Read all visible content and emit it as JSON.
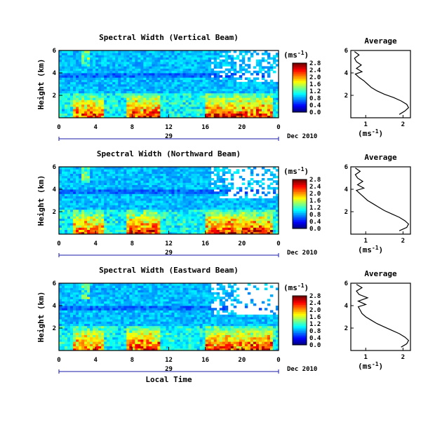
{
  "chart_data": [
    {
      "type": "heatmap",
      "title": "Spectral Width (Vertical Beam)",
      "ylabel": "Height (km)",
      "ylim": [
        0,
        6
      ],
      "yticks": [
        "2",
        "4",
        "6"
      ],
      "xlim": [
        0,
        24
      ],
      "xticks": [
        "0",
        "4",
        "8",
        "12",
        "16",
        "20",
        "0"
      ],
      "date_label": "29",
      "month_label": "Dec 2010",
      "colorbar": {
        "unit": "(ms⁻¹)",
        "ticks": [
          "0.0",
          "0.4",
          "0.8",
          "1.2",
          "1.6",
          "2.0",
          "2.4",
          "2.8"
        ],
        "range": [
          0,
          2.8
        ]
      },
      "average": {
        "title": "Average",
        "xlabel": "(ms⁻¹)",
        "xticks": [
          "1",
          "2"
        ],
        "yticks": [
          "2",
          "4",
          "6"
        ],
        "xlim": [
          0.6,
          2.2
        ],
        "ylim": [
          0,
          6
        ],
        "profile": [
          [
            0.3,
            1.9
          ],
          [
            0.6,
            2.05
          ],
          [
            0.9,
            2.15
          ],
          [
            1.2,
            2.1
          ],
          [
            1.5,
            1.95
          ],
          [
            1.8,
            1.75
          ],
          [
            2.1,
            1.5
          ],
          [
            2.4,
            1.3
          ],
          [
            2.7,
            1.15
          ],
          [
            3.0,
            1.05
          ],
          [
            3.3,
            0.95
          ],
          [
            3.6,
            0.82
          ],
          [
            3.9,
            0.72
          ],
          [
            4.1,
            0.9
          ],
          [
            4.4,
            0.75
          ],
          [
            4.7,
            0.88
          ],
          [
            5.0,
            0.75
          ],
          [
            5.3,
            0.7
          ],
          [
            5.6,
            0.82
          ],
          [
            5.9,
            0.7
          ]
        ]
      }
    },
    {
      "type": "heatmap",
      "title": "Spectral Width (Northward Beam)",
      "ylabel": "Height (km)",
      "ylim": [
        0,
        6
      ],
      "yticks": [
        "2",
        "4",
        "6"
      ],
      "xlim": [
        0,
        24
      ],
      "xticks": [
        "0",
        "4",
        "8",
        "12",
        "16",
        "20",
        "0"
      ],
      "date_label": "29",
      "month_label": "Dec 2010",
      "colorbar": {
        "unit": "(ms⁻¹)",
        "ticks": [
          "0.0",
          "0.4",
          "0.8",
          "1.2",
          "1.6",
          "2.0",
          "2.4",
          "2.8"
        ],
        "range": [
          0,
          2.8
        ]
      },
      "average": {
        "title": "Average",
        "xlabel": "(ms⁻¹)",
        "xticks": [
          "1",
          "2"
        ],
        "yticks": [
          "2",
          "4",
          "6"
        ],
        "xlim": [
          0.6,
          2.2
        ],
        "ylim": [
          0,
          6
        ],
        "profile": [
          [
            0.3,
            1.9
          ],
          [
            0.6,
            2.1
          ],
          [
            0.9,
            2.15
          ],
          [
            1.2,
            2.05
          ],
          [
            1.5,
            1.9
          ],
          [
            1.8,
            1.7
          ],
          [
            2.1,
            1.5
          ],
          [
            2.4,
            1.35
          ],
          [
            2.7,
            1.2
          ],
          [
            3.0,
            1.05
          ],
          [
            3.3,
            0.95
          ],
          [
            3.6,
            0.85
          ],
          [
            3.9,
            0.75
          ],
          [
            4.1,
            0.95
          ],
          [
            4.4,
            0.78
          ],
          [
            4.7,
            0.92
          ],
          [
            5.0,
            0.78
          ],
          [
            5.3,
            0.72
          ],
          [
            5.6,
            0.85
          ],
          [
            5.9,
            0.72
          ]
        ]
      }
    },
    {
      "type": "heatmap",
      "title": "Spectral Width (Eastward Beam)",
      "ylabel": "Height (km)",
      "ylim": [
        0,
        6
      ],
      "yticks": [
        "2",
        "4",
        "6"
      ],
      "xlim": [
        0,
        24
      ],
      "xticks": [
        "0",
        "4",
        "8",
        "12",
        "16",
        "20",
        "0"
      ],
      "date_label": "29",
      "month_label": "Dec 2010",
      "xlabel": "Local Time",
      "colorbar": {
        "unit": "(ms⁻¹)",
        "ticks": [
          "0.0",
          "0.4",
          "0.8",
          "1.2",
          "1.6",
          "2.0",
          "2.4",
          "2.8"
        ],
        "range": [
          0,
          2.8
        ]
      },
      "average": {
        "title": "Average",
        "xlabel": "(ms⁻¹)",
        "xticks": [
          "1",
          "2"
        ],
        "yticks": [
          "2",
          "4",
          "6"
        ],
        "xlim": [
          0.6,
          2.2
        ],
        "ylim": [
          0,
          6
        ],
        "profile": [
          [
            0.3,
            1.95
          ],
          [
            0.6,
            2.1
          ],
          [
            0.9,
            2.15
          ],
          [
            1.2,
            2.05
          ],
          [
            1.5,
            1.9
          ],
          [
            1.8,
            1.7
          ],
          [
            2.1,
            1.5
          ],
          [
            2.4,
            1.3
          ],
          [
            2.7,
            1.15
          ],
          [
            3.0,
            1.0
          ],
          [
            3.3,
            0.9
          ],
          [
            3.6,
            0.85
          ],
          [
            3.9,
            0.8
          ],
          [
            4.1,
            1.0
          ],
          [
            4.4,
            0.8
          ],
          [
            4.7,
            1.05
          ],
          [
            5.0,
            0.82
          ],
          [
            5.3,
            0.75
          ],
          [
            5.6,
            0.9
          ],
          [
            5.9,
            0.75
          ]
        ]
      }
    }
  ]
}
